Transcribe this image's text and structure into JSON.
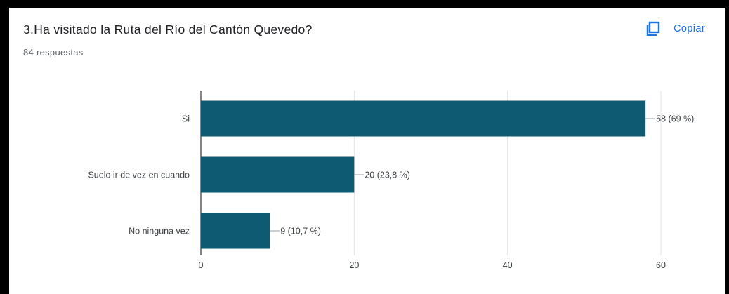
{
  "header": {
    "title": "3.Ha visitado la Ruta del Río del Cantón Quevedo?",
    "responses": "84 respuestas",
    "copy_label": "Copiar",
    "copy_icon": "copy-icon"
  },
  "colors": {
    "bar": "#0f5a73",
    "grid": "#e3e3e3",
    "axis": "#333333",
    "label": "#3c4043",
    "accent": "#1a73e8"
  },
  "chart_data": {
    "type": "bar",
    "orientation": "horizontal",
    "title": "",
    "xlabel": "",
    "ylabel": "",
    "categories": [
      "Si",
      "Suelo ir de vez en cuando",
      "No ninguna vez"
    ],
    "values": [
      58,
      20,
      9
    ],
    "data_labels": [
      "58 (69 %)",
      "20 (23,8 %)",
      "9 (10,7 %)"
    ],
    "xlim": [
      0,
      60
    ],
    "xticks": [
      0,
      20,
      40,
      60
    ],
    "grid": true,
    "legend": "none"
  }
}
